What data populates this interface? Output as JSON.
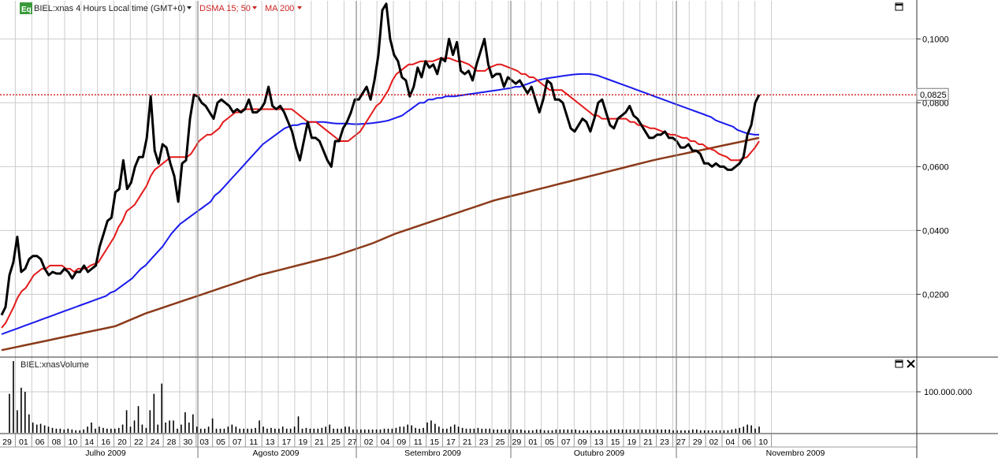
{
  "header": {
    "eq_badge": "Eq",
    "instrument": "BIEL:xnas 4 Hours Local time (GMT+0)",
    "ind1": "DSMA 15; 50",
    "ind2": "MA 200"
  },
  "volume_title": "BIEL:xnasVolume",
  "price_label": "0,0825",
  "colors": {
    "price": "#000000",
    "dsma15": "#e41a1a",
    "dsma50": "#1a1aee",
    "ma200": "#8b3a1a",
    "hline": "#cc0000",
    "grid": "#cccccc",
    "eq_badge": "#3a9a3a"
  },
  "icons": {
    "maximize": "maximize-icon",
    "close": "close-icon",
    "dropdown": "triangle-down-icon"
  },
  "chart_data": [
    {
      "type": "line",
      "ylim": [
        0.0,
        0.11
      ],
      "yticks": [
        "0,0200",
        "0,0400",
        "0,0600",
        "0,0800",
        "0,1000"
      ],
      "ytick_values": [
        0.02,
        0.04,
        0.06,
        0.08,
        0.1
      ],
      "hline": 0.0825,
      "series": [
        {
          "name": "BIEL:xnas",
          "values": [
            0.0135,
            0.016,
            0.026,
            0.03,
            0.038,
            0.027,
            0.028,
            0.031,
            0.032,
            0.032,
            0.031,
            0.028,
            0.026,
            0.027,
            0.0265,
            0.0265,
            0.028,
            0.027,
            0.025,
            0.027,
            0.027,
            0.029,
            0.027,
            0.028,
            0.029,
            0.035,
            0.039,
            0.043,
            0.044,
            0.052,
            0.053,
            0.062,
            0.053,
            0.055,
            0.06,
            0.063,
            0.063,
            0.069,
            0.082,
            0.065,
            0.061,
            0.067,
            0.066,
            0.061,
            0.057,
            0.049,
            0.061,
            0.062,
            0.075,
            0.0825,
            0.082,
            0.08,
            0.079,
            0.077,
            0.075,
            0.08,
            0.081,
            0.08,
            0.079,
            0.077,
            0.078,
            0.077,
            0.078,
            0.081,
            0.077,
            0.077,
            0.078,
            0.08,
            0.085,
            0.079,
            0.078,
            0.079,
            0.077,
            0.074,
            0.071,
            0.066,
            0.062,
            0.068,
            0.074,
            0.069,
            0.069,
            0.068,
            0.065,
            0.062,
            0.06,
            0.068,
            0.068,
            0.072,
            0.074,
            0.077,
            0.081,
            0.081,
            0.083,
            0.085,
            0.081,
            0.087,
            0.095,
            0.109,
            0.111,
            0.1,
            0.095,
            0.093,
            0.088,
            0.087,
            0.082,
            0.085,
            0.091,
            0.088,
            0.093,
            0.091,
            0.092,
            0.089,
            0.094,
            0.093,
            0.1,
            0.095,
            0.099,
            0.09,
            0.089,
            0.09,
            0.087,
            0.092,
            0.096,
            0.1,
            0.092,
            0.088,
            0.089,
            0.089,
            0.085,
            0.088,
            0.087,
            0.086,
            0.087,
            0.085,
            0.083,
            0.085,
            0.081,
            0.077,
            0.081,
            0.087,
            0.086,
            0.081,
            0.081,
            0.08,
            0.076,
            0.072,
            0.071,
            0.073,
            0.075,
            0.074,
            0.071,
            0.075,
            0.08,
            0.081,
            0.077,
            0.073,
            0.072,
            0.075,
            0.076,
            0.077,
            0.079,
            0.076,
            0.075,
            0.073,
            0.071,
            0.069,
            0.069,
            0.07,
            0.07,
            0.071,
            0.069,
            0.069,
            0.068,
            0.066,
            0.066,
            0.067,
            0.065,
            0.065,
            0.064,
            0.061,
            0.061,
            0.06,
            0.061,
            0.06,
            0.06,
            0.059,
            0.059,
            0.06,
            0.061,
            0.063,
            0.07,
            0.073,
            0.08,
            0.0825
          ]
        },
        {
          "name": "DSMA 15",
          "values": [
            0.0095,
            0.011,
            0.0135,
            0.016,
            0.019,
            0.021,
            0.022,
            0.024,
            0.026,
            0.027,
            0.028,
            0.028,
            0.029,
            0.029,
            0.029,
            0.029,
            0.028,
            0.028,
            0.027,
            0.028,
            0.028,
            0.028,
            0.029,
            0.0295,
            0.03,
            0.032,
            0.034,
            0.036,
            0.038,
            0.041,
            0.043,
            0.046,
            0.047,
            0.048,
            0.05,
            0.052,
            0.054,
            0.057,
            0.059,
            0.06,
            0.061,
            0.062,
            0.063,
            0.063,
            0.063,
            0.063,
            0.063,
            0.064,
            0.066,
            0.068,
            0.069,
            0.07,
            0.07,
            0.071,
            0.072,
            0.074,
            0.075,
            0.076,
            0.077,
            0.077,
            0.078,
            0.078,
            0.078,
            0.078,
            0.078,
            0.078,
            0.078,
            0.078,
            0.078,
            0.078,
            0.078,
            0.078,
            0.078,
            0.077,
            0.076,
            0.075,
            0.074,
            0.074,
            0.074,
            0.073,
            0.072,
            0.071,
            0.07,
            0.069,
            0.068,
            0.068,
            0.068,
            0.069,
            0.07,
            0.071,
            0.073,
            0.075,
            0.077,
            0.079,
            0.08,
            0.082,
            0.084,
            0.087,
            0.089,
            0.09,
            0.091,
            0.092,
            0.092,
            0.0925,
            0.093,
            0.093,
            0.093,
            0.093,
            0.0935,
            0.094,
            0.094,
            0.094,
            0.0935,
            0.093,
            0.093,
            0.0925,
            0.092,
            0.091,
            0.09,
            0.09,
            0.09,
            0.091,
            0.0915,
            0.092,
            0.092,
            0.0915,
            0.091,
            0.0905,
            0.09,
            0.089,
            0.089,
            0.088,
            0.088,
            0.087,
            0.086,
            0.085,
            0.084,
            0.084,
            0.084,
            0.084,
            0.083,
            0.082,
            0.081,
            0.08,
            0.079,
            0.078,
            0.077,
            0.076,
            0.076,
            0.075,
            0.075,
            0.075,
            0.075,
            0.075,
            0.075,
            0.075,
            0.074,
            0.074,
            0.073,
            0.073,
            0.0725,
            0.072,
            0.072,
            0.0715,
            0.071,
            0.0705,
            0.07,
            0.07,
            0.0695,
            0.069,
            0.069,
            0.068,
            0.068,
            0.067,
            0.067,
            0.066,
            0.0655,
            0.065,
            0.064,
            0.0635,
            0.063,
            0.062,
            0.062,
            0.062,
            0.0625,
            0.063,
            0.0645,
            0.066,
            0.068
          ]
        },
        {
          "name": "DSMA 50",
          "values": [
            0.0075,
            0.008,
            0.0085,
            0.009,
            0.0095,
            0.01,
            0.0105,
            0.011,
            0.0115,
            0.012,
            0.0125,
            0.013,
            0.0135,
            0.014,
            0.0145,
            0.015,
            0.0155,
            0.016,
            0.0165,
            0.017,
            0.0175,
            0.018,
            0.0185,
            0.019,
            0.0195,
            0.0205,
            0.021,
            0.022,
            0.023,
            0.024,
            0.025,
            0.0265,
            0.028,
            0.029,
            0.0305,
            0.032,
            0.0335,
            0.035,
            0.037,
            0.039,
            0.0405,
            0.042,
            0.043,
            0.044,
            0.045,
            0.046,
            0.047,
            0.048,
            0.049,
            0.051,
            0.052,
            0.0535,
            0.055,
            0.0565,
            0.058,
            0.0595,
            0.061,
            0.0625,
            0.064,
            0.0655,
            0.067,
            0.068,
            0.069,
            0.07,
            0.071,
            0.072,
            0.0725,
            0.073,
            0.073,
            0.0735,
            0.0735,
            0.074,
            0.074,
            0.074,
            0.074,
            0.0738,
            0.0736,
            0.0735,
            0.0735,
            0.0735,
            0.0734,
            0.0733,
            0.0733,
            0.0734,
            0.0735,
            0.0736,
            0.0738,
            0.074,
            0.0742,
            0.0745,
            0.075,
            0.0755,
            0.076,
            0.077,
            0.078,
            0.079,
            0.08,
            0.08,
            0.081,
            0.081,
            0.0815,
            0.0815,
            0.082,
            0.082,
            0.082,
            0.0822,
            0.0824,
            0.0826,
            0.0828,
            0.083,
            0.0832,
            0.0834,
            0.0836,
            0.0838,
            0.084,
            0.0842,
            0.0844,
            0.0846,
            0.085,
            0.085,
            0.0855,
            0.086,
            0.0865,
            0.087,
            0.0873,
            0.0876,
            0.0878,
            0.088,
            0.0882,
            0.0884,
            0.0886,
            0.0888,
            0.0889,
            0.089,
            0.089,
            0.089,
            0.0888,
            0.0885,
            0.088,
            0.0875,
            0.087,
            0.0865,
            0.086,
            0.0855,
            0.085,
            0.0845,
            0.084,
            0.0835,
            0.083,
            0.0825,
            0.082,
            0.0815,
            0.081,
            0.0805,
            0.08,
            0.0795,
            0.079,
            0.0785,
            0.078,
            0.0775,
            0.077,
            0.0765,
            0.076,
            0.0755,
            0.0745,
            0.074,
            0.0735,
            0.073,
            0.0725,
            0.0715,
            0.071,
            0.0705,
            0.0702,
            0.07,
            0.07
          ]
        },
        {
          "name": "MA 200",
          "values": [
            0.0025,
            0.003,
            0.0035,
            0.004,
            0.0045,
            0.005,
            0.0055,
            0.006,
            0.0065,
            0.007,
            0.0075,
            0.008,
            0.0085,
            0.009,
            0.0095,
            0.01,
            0.011,
            0.012,
            0.013,
            0.014,
            0.0148,
            0.0156,
            0.0164,
            0.0172,
            0.018,
            0.0188,
            0.0196,
            0.0204,
            0.0212,
            0.022,
            0.0228,
            0.0236,
            0.0244,
            0.0252,
            0.026,
            0.0266,
            0.0272,
            0.0278,
            0.0284,
            0.029,
            0.0296,
            0.0302,
            0.0308,
            0.0314,
            0.032,
            0.0328,
            0.0336,
            0.0344,
            0.0352,
            0.036,
            0.037,
            0.038,
            0.039,
            0.0398,
            0.0406,
            0.0414,
            0.0422,
            0.043,
            0.0438,
            0.0446,
            0.0454,
            0.0462,
            0.047,
            0.0478,
            0.0486,
            0.0494,
            0.05,
            0.0506,
            0.0512,
            0.0518,
            0.0524,
            0.053,
            0.0536,
            0.0542,
            0.0548,
            0.0554,
            0.056,
            0.0566,
            0.0572,
            0.0578,
            0.0584,
            0.059,
            0.0596,
            0.0602,
            0.0608,
            0.0614,
            0.062,
            0.0625,
            0.063,
            0.0635,
            0.064,
            0.0645,
            0.065,
            0.0655,
            0.066,
            0.0665,
            0.067,
            0.0675,
            0.068,
            0.0685,
            0.069
          ]
        }
      ]
    },
    {
      "type": "bar",
      "title": "BIEL:xnasVolume",
      "yticks": [
        "100.000.000"
      ],
      "ytick_values": [
        100000000
      ],
      "values": [
        95,
        175,
        55,
        110,
        100,
        45,
        25,
        20,
        22,
        18,
        15,
        12,
        10,
        10,
        8,
        10,
        8,
        6,
        6,
        8,
        15,
        25,
        10,
        15,
        12,
        10,
        10,
        10,
        12,
        20,
        55,
        15,
        30,
        65,
        20,
        12,
        55,
        95,
        20,
        120,
        25,
        30,
        30,
        10,
        20,
        50,
        25,
        45,
        15,
        10,
        10,
        15,
        35,
        10,
        10,
        10,
        15,
        20,
        15,
        10,
        10,
        10,
        10,
        12,
        30,
        15,
        10,
        12,
        10,
        10,
        15,
        10,
        10,
        15,
        40,
        10,
        12,
        10,
        10,
        10,
        12,
        15,
        20,
        10,
        10,
        10,
        15,
        15,
        8,
        8,
        8,
        8,
        8,
        8,
        8,
        8,
        10,
        10,
        10,
        12,
        15,
        15,
        20,
        18,
        12,
        10,
        12,
        25,
        30,
        22,
        15,
        10,
        10,
        15,
        20,
        15,
        12,
        10,
        10,
        10,
        12,
        10,
        10,
        10,
        8,
        8,
        8,
        8,
        8,
        8,
        8,
        8,
        6,
        6,
        6,
        8,
        8,
        6,
        6,
        6,
        8,
        8,
        8,
        8,
        8,
        8,
        6,
        6,
        6,
        6,
        6,
        6,
        6,
        6,
        8,
        8,
        8,
        8,
        8,
        8,
        8,
        8,
        8,
        8,
        8,
        8,
        8,
        8,
        8,
        8,
        6,
        6,
        6,
        6,
        6,
        8,
        8,
        6,
        6,
        6,
        6,
        6,
        6,
        6,
        6,
        8,
        10,
        12,
        15,
        20,
        18,
        10,
        15
      ]
    }
  ],
  "xaxis": {
    "dates": [
      "29",
      "01",
      "06",
      "08",
      "10",
      "14",
      "16",
      "20",
      "22",
      "24",
      "28",
      "30",
      "03",
      "05",
      "07",
      "11",
      "13",
      "17",
      "19",
      "21",
      "25",
      "27",
      "02",
      "04",
      "09",
      "11",
      "15",
      "17",
      "21",
      "23",
      "25",
      "29",
      "01",
      "05",
      "07",
      "09",
      "13",
      "15",
      "19",
      "21",
      "23",
      "27",
      "29",
      "02",
      "04",
      "06",
      "10"
    ],
    "months": [
      "Julho 2009",
      "Agosto 2009",
      "Setembro 2009",
      "Outubro 2009",
      "Novembro 2009"
    ]
  }
}
